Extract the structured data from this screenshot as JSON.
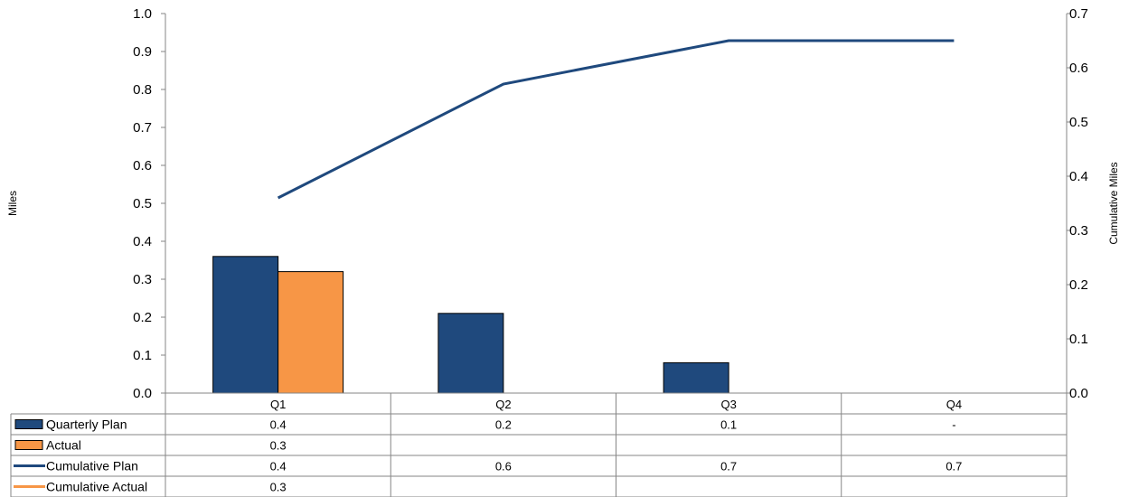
{
  "chart_data": {
    "type": "bar",
    "categories": [
      "Q1",
      "Q2",
      "Q3",
      "Q4"
    ],
    "ylabel": "Miles",
    "y2label": "Cumulative Miles",
    "ylim": [
      0,
      1.0
    ],
    "y2lim": [
      0,
      0.7
    ],
    "yticks": [
      "0.0",
      "0.1",
      "0.2",
      "0.3",
      "0.4",
      "0.5",
      "0.6",
      "0.7",
      "0.8",
      "0.9",
      "1.0"
    ],
    "y2ticks": [
      "0.0",
      "0.1",
      "0.2",
      "0.3",
      "0.4",
      "0.5",
      "0.6",
      "0.7"
    ],
    "series": [
      {
        "name": "Quarterly Plan",
        "kind": "bar",
        "axis": "left",
        "color": "#1F497D",
        "values": [
          0.36,
          0.21,
          0.08,
          null
        ]
      },
      {
        "name": "Actual",
        "kind": "bar",
        "axis": "left",
        "color": "#F79646",
        "values": [
          0.32,
          null,
          null,
          null
        ]
      },
      {
        "name": "Cumulative Plan",
        "kind": "line",
        "axis": "right",
        "color": "#1F497D",
        "values": [
          0.36,
          0.57,
          0.65,
          0.65
        ]
      },
      {
        "name": "Cumulative Actual",
        "kind": "line",
        "axis": "right",
        "color": "#F79646",
        "values": [
          0.32,
          null,
          null,
          null
        ]
      }
    ],
    "table": {
      "rows": [
        {
          "name": "Quarterly Plan",
          "icon": "bar",
          "color": "#1F497D",
          "cells": [
            "0.4",
            "0.2",
            "0.1",
            "-"
          ]
        },
        {
          "name": "Actual",
          "icon": "bar",
          "color": "#F79646",
          "cells": [
            "0.3",
            "",
            "",
            ""
          ]
        },
        {
          "name": "Cumulative Plan",
          "icon": "line",
          "color": "#1F497D",
          "cells": [
            "0.4",
            "0.6",
            "0.7",
            "0.7"
          ]
        },
        {
          "name": "Cumulative Actual",
          "icon": "line",
          "color": "#F79646",
          "cells": [
            "0.3",
            "",
            "",
            ""
          ]
        }
      ]
    },
    "grid": false,
    "legend": "data-table"
  }
}
